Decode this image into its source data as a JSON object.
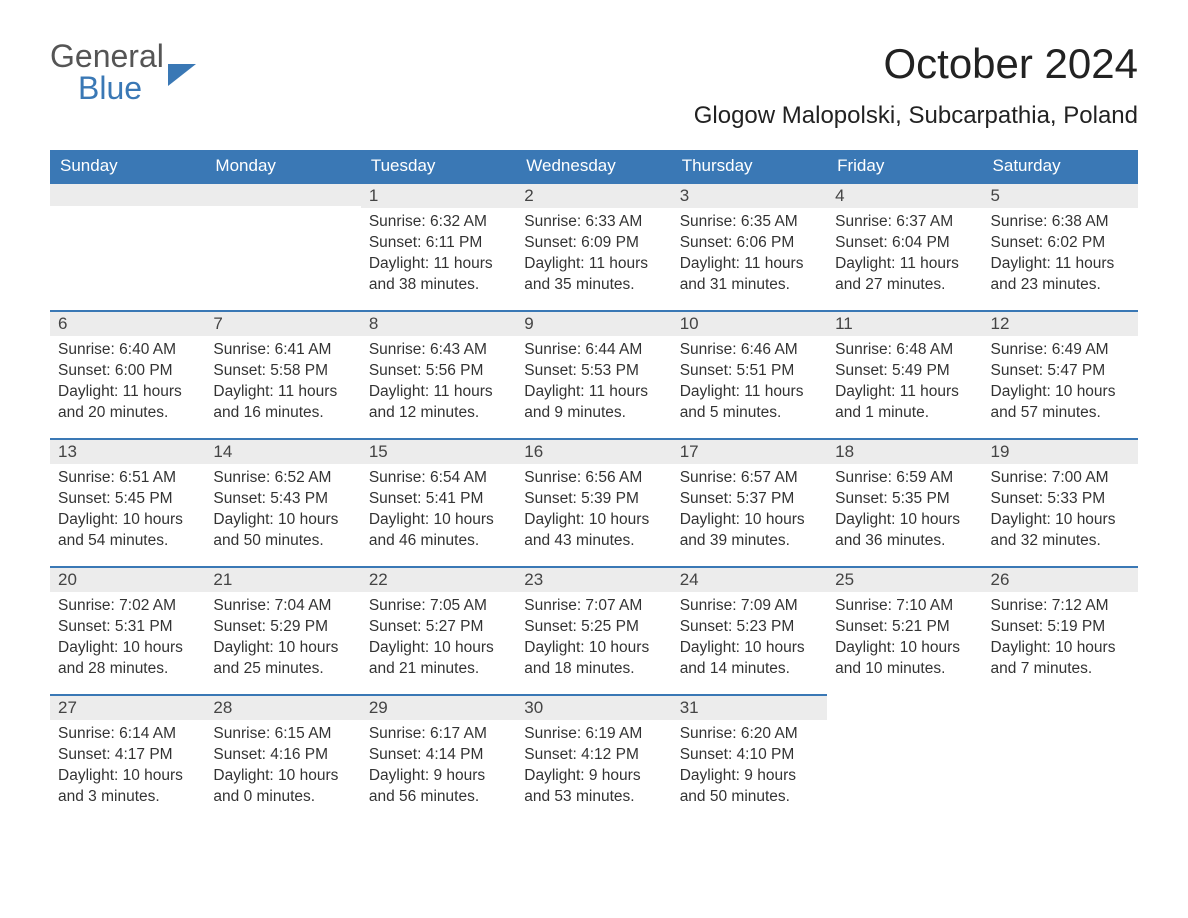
{
  "logo": {
    "general": "General",
    "blue": "Blue"
  },
  "title": "October 2024",
  "location": "Glogow Malopolski, Subcarpathia, Poland",
  "colors": {
    "brand": "#3a78b5",
    "header_bg": "#3a78b5",
    "header_text": "#ffffff",
    "daynum_bg": "#ececec",
    "text": "#333333"
  },
  "weekdays": [
    "Sunday",
    "Monday",
    "Tuesday",
    "Wednesday",
    "Thursday",
    "Friday",
    "Saturday"
  ],
  "weeks": [
    [
      {
        "day": "",
        "sunrise": "",
        "sunset": "",
        "daylight": ""
      },
      {
        "day": "",
        "sunrise": "",
        "sunset": "",
        "daylight": ""
      },
      {
        "day": "1",
        "sunrise": "Sunrise: 6:32 AM",
        "sunset": "Sunset: 6:11 PM",
        "daylight": "Daylight: 11 hours and 38 minutes."
      },
      {
        "day": "2",
        "sunrise": "Sunrise: 6:33 AM",
        "sunset": "Sunset: 6:09 PM",
        "daylight": "Daylight: 11 hours and 35 minutes."
      },
      {
        "day": "3",
        "sunrise": "Sunrise: 6:35 AM",
        "sunset": "Sunset: 6:06 PM",
        "daylight": "Daylight: 11 hours and 31 minutes."
      },
      {
        "day": "4",
        "sunrise": "Sunrise: 6:37 AM",
        "sunset": "Sunset: 6:04 PM",
        "daylight": "Daylight: 11 hours and 27 minutes."
      },
      {
        "day": "5",
        "sunrise": "Sunrise: 6:38 AM",
        "sunset": "Sunset: 6:02 PM",
        "daylight": "Daylight: 11 hours and 23 minutes."
      }
    ],
    [
      {
        "day": "6",
        "sunrise": "Sunrise: 6:40 AM",
        "sunset": "Sunset: 6:00 PM",
        "daylight": "Daylight: 11 hours and 20 minutes."
      },
      {
        "day": "7",
        "sunrise": "Sunrise: 6:41 AM",
        "sunset": "Sunset: 5:58 PM",
        "daylight": "Daylight: 11 hours and 16 minutes."
      },
      {
        "day": "8",
        "sunrise": "Sunrise: 6:43 AM",
        "sunset": "Sunset: 5:56 PM",
        "daylight": "Daylight: 11 hours and 12 minutes."
      },
      {
        "day": "9",
        "sunrise": "Sunrise: 6:44 AM",
        "sunset": "Sunset: 5:53 PM",
        "daylight": "Daylight: 11 hours and 9 minutes."
      },
      {
        "day": "10",
        "sunrise": "Sunrise: 6:46 AM",
        "sunset": "Sunset: 5:51 PM",
        "daylight": "Daylight: 11 hours and 5 minutes."
      },
      {
        "day": "11",
        "sunrise": "Sunrise: 6:48 AM",
        "sunset": "Sunset: 5:49 PM",
        "daylight": "Daylight: 11 hours and 1 minute."
      },
      {
        "day": "12",
        "sunrise": "Sunrise: 6:49 AM",
        "sunset": "Sunset: 5:47 PM",
        "daylight": "Daylight: 10 hours and 57 minutes."
      }
    ],
    [
      {
        "day": "13",
        "sunrise": "Sunrise: 6:51 AM",
        "sunset": "Sunset: 5:45 PM",
        "daylight": "Daylight: 10 hours and 54 minutes."
      },
      {
        "day": "14",
        "sunrise": "Sunrise: 6:52 AM",
        "sunset": "Sunset: 5:43 PM",
        "daylight": "Daylight: 10 hours and 50 minutes."
      },
      {
        "day": "15",
        "sunrise": "Sunrise: 6:54 AM",
        "sunset": "Sunset: 5:41 PM",
        "daylight": "Daylight: 10 hours and 46 minutes."
      },
      {
        "day": "16",
        "sunrise": "Sunrise: 6:56 AM",
        "sunset": "Sunset: 5:39 PM",
        "daylight": "Daylight: 10 hours and 43 minutes."
      },
      {
        "day": "17",
        "sunrise": "Sunrise: 6:57 AM",
        "sunset": "Sunset: 5:37 PM",
        "daylight": "Daylight: 10 hours and 39 minutes."
      },
      {
        "day": "18",
        "sunrise": "Sunrise: 6:59 AM",
        "sunset": "Sunset: 5:35 PM",
        "daylight": "Daylight: 10 hours and 36 minutes."
      },
      {
        "day": "19",
        "sunrise": "Sunrise: 7:00 AM",
        "sunset": "Sunset: 5:33 PM",
        "daylight": "Daylight: 10 hours and 32 minutes."
      }
    ],
    [
      {
        "day": "20",
        "sunrise": "Sunrise: 7:02 AM",
        "sunset": "Sunset: 5:31 PM",
        "daylight": "Daylight: 10 hours and 28 minutes."
      },
      {
        "day": "21",
        "sunrise": "Sunrise: 7:04 AM",
        "sunset": "Sunset: 5:29 PM",
        "daylight": "Daylight: 10 hours and 25 minutes."
      },
      {
        "day": "22",
        "sunrise": "Sunrise: 7:05 AM",
        "sunset": "Sunset: 5:27 PM",
        "daylight": "Daylight: 10 hours and 21 minutes."
      },
      {
        "day": "23",
        "sunrise": "Sunrise: 7:07 AM",
        "sunset": "Sunset: 5:25 PM",
        "daylight": "Daylight: 10 hours and 18 minutes."
      },
      {
        "day": "24",
        "sunrise": "Sunrise: 7:09 AM",
        "sunset": "Sunset: 5:23 PM",
        "daylight": "Daylight: 10 hours and 14 minutes."
      },
      {
        "day": "25",
        "sunrise": "Sunrise: 7:10 AM",
        "sunset": "Sunset: 5:21 PM",
        "daylight": "Daylight: 10 hours and 10 minutes."
      },
      {
        "day": "26",
        "sunrise": "Sunrise: 7:12 AM",
        "sunset": "Sunset: 5:19 PM",
        "daylight": "Daylight: 10 hours and 7 minutes."
      }
    ],
    [
      {
        "day": "27",
        "sunrise": "Sunrise: 6:14 AM",
        "sunset": "Sunset: 4:17 PM",
        "daylight": "Daylight: 10 hours and 3 minutes."
      },
      {
        "day": "28",
        "sunrise": "Sunrise: 6:15 AM",
        "sunset": "Sunset: 4:16 PM",
        "daylight": "Daylight: 10 hours and 0 minutes."
      },
      {
        "day": "29",
        "sunrise": "Sunrise: 6:17 AM",
        "sunset": "Sunset: 4:14 PM",
        "daylight": "Daylight: 9 hours and 56 minutes."
      },
      {
        "day": "30",
        "sunrise": "Sunrise: 6:19 AM",
        "sunset": "Sunset: 4:12 PM",
        "daylight": "Daylight: 9 hours and 53 minutes."
      },
      {
        "day": "31",
        "sunrise": "Sunrise: 6:20 AM",
        "sunset": "Sunset: 4:10 PM",
        "daylight": "Daylight: 9 hours and 50 minutes."
      },
      {
        "day": "",
        "sunrise": "",
        "sunset": "",
        "daylight": ""
      },
      {
        "day": "",
        "sunrise": "",
        "sunset": "",
        "daylight": ""
      }
    ]
  ]
}
